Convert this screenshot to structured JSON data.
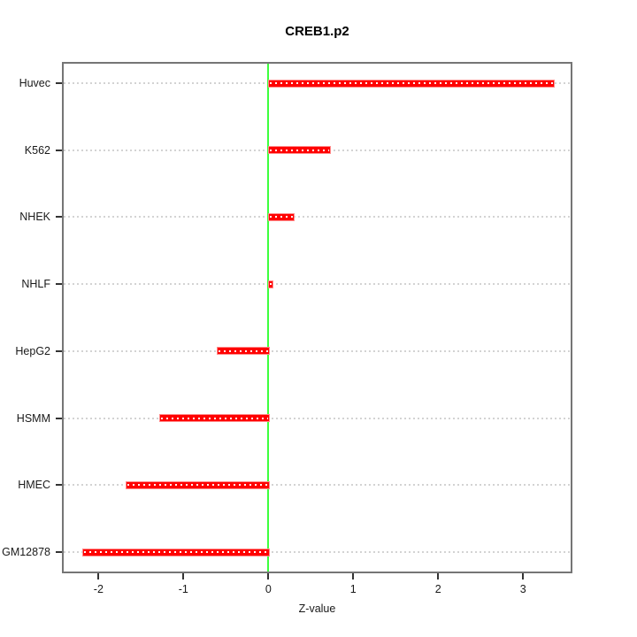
{
  "chart_data": {
    "type": "bar",
    "orientation": "horizontal",
    "title": "CREB1.p2",
    "xlabel": "Z-value",
    "categories": [
      "Huvec",
      "K562",
      "NHEK",
      "NHLF",
      "HepG2",
      "HSMM",
      "HMEC",
      "GM12878"
    ],
    "values": [
      3.35,
      0.72,
      0.29,
      0.04,
      -0.61,
      -1.28,
      -1.68,
      -2.19
    ],
    "xticks": [
      -2,
      -1,
      0,
      1,
      2,
      3
    ],
    "xlim": [
      -2.41,
      3.56
    ],
    "grid": "dotted-horizontal-per-category",
    "zero_line_x": 0,
    "legend": "none",
    "colors": {
      "bar": "#ff0000",
      "bar_edge": "#ff8c8c",
      "bar_dash": "#ffffff",
      "zero_line": "#3dff3d",
      "grid": "#d3d3d3",
      "frame": "#757575",
      "tick": "#333333",
      "text": "#1a1a1a"
    }
  }
}
